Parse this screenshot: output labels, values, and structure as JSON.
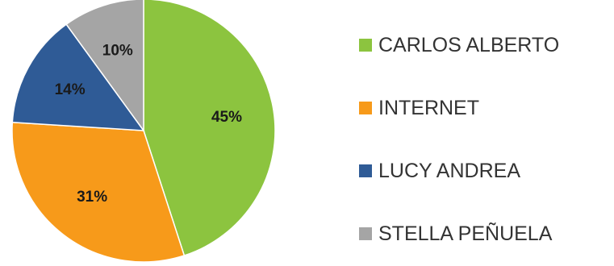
{
  "chart_data": {
    "type": "pie",
    "title": "",
    "legend_position": "right",
    "slices": [
      {
        "label": "CARLOS  ALBERTO",
        "value": 45,
        "display": "45%",
        "color": "#8cc43f"
      },
      {
        "label": "INTERNET",
        "value": 31,
        "display": "31%",
        "color": "#f79a1a"
      },
      {
        "label": "LUCY ANDREA",
        "value": 14,
        "display": "14%",
        "color": "#2f5b96"
      },
      {
        "label": "STELLA  PEÑUELA",
        "value": 10,
        "display": "10%",
        "color": "#a5a5a5"
      }
    ]
  }
}
